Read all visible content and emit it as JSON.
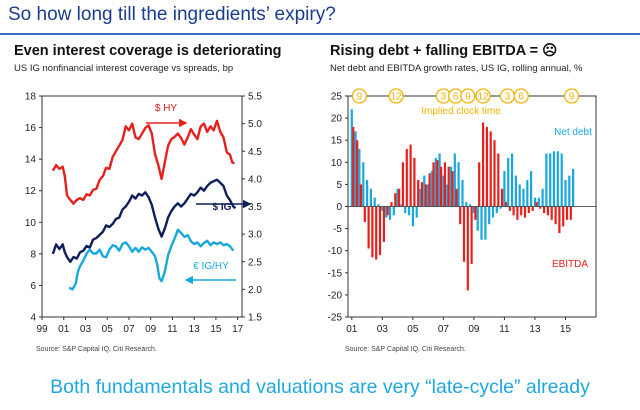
{
  "slide": {
    "title": "So how long till the ingredients’ expiry?",
    "footer": "Both fundamentals and valuations are very “late-cycle” already"
  },
  "left": {
    "title": "Even interest coverage is deteriorating",
    "subtitle": "US IG nonfinancial interest coverage vs spreads, bp",
    "source": "Source: S&P Capital IQ, Citi Research."
  },
  "right": {
    "title": "Rising debt + falling EBITDA = ☹",
    "subtitle": "Net debt and EBITDA growth rates, US IG, rolling annual, %",
    "source": "Source: S&P Capital IQ, Citi Research."
  },
  "chart_data": [
    {
      "type": "line",
      "title": "Even interest coverage is deteriorating",
      "subtitle": "US IG nonfinancial interest coverage vs spreads, bp",
      "x_ticks": [
        "99",
        "01",
        "03",
        "05",
        "07",
        "09",
        "11",
        "13",
        "15",
        "17"
      ],
      "xlim": [
        1999,
        2017.4
      ],
      "left_axis": {
        "ticks": [
          "18",
          "16",
          "14",
          "12",
          "10",
          "8",
          "6",
          "4"
        ],
        "ylim": [
          4,
          18
        ]
      },
      "right_axis": {
        "ticks": [
          "5.5",
          "5.0",
          "4.5",
          "4.0",
          "3.5",
          "3.0",
          "2.5",
          "2.0",
          "1.5"
        ],
        "ylim": [
          1.5,
          5.5
        ]
      },
      "grid": false,
      "colors": {
        "hy": "#e8201c",
        "ig": "#0f1f5c",
        "igHy": "#19a8de"
      },
      "series": [
        {
          "name": "$ HY",
          "axis": "right",
          "points": [
            [
              2000.0,
              4.15
            ],
            [
              2000.3,
              4.25
            ],
            [
              2000.6,
              4.18
            ],
            [
              2000.9,
              4.22
            ],
            [
              2001.1,
              4.05
            ],
            [
              2001.3,
              3.7
            ],
            [
              2001.6,
              3.62
            ],
            [
              2001.9,
              3.55
            ],
            [
              2002.2,
              3.62
            ],
            [
              2002.5,
              3.65
            ],
            [
              2002.8,
              3.62
            ],
            [
              2003.1,
              3.72
            ],
            [
              2003.4,
              3.7
            ],
            [
              2003.7,
              3.8
            ],
            [
              2004.0,
              3.82
            ],
            [
              2004.3,
              3.98
            ],
            [
              2004.6,
              4.05
            ],
            [
              2004.9,
              4.2
            ],
            [
              2005.2,
              4.18
            ],
            [
              2005.5,
              4.4
            ],
            [
              2005.8,
              4.5
            ],
            [
              2006.1,
              4.6
            ],
            [
              2006.4,
              4.7
            ],
            [
              2006.7,
              4.95
            ],
            [
              2007.0,
              4.88
            ],
            [
              2007.3,
              5.0
            ],
            [
              2007.6,
              4.75
            ],
            [
              2007.9,
              4.72
            ],
            [
              2008.2,
              4.82
            ],
            [
              2008.5,
              4.92
            ],
            [
              2008.8,
              4.97
            ],
            [
              2009.1,
              4.82
            ],
            [
              2009.4,
              4.45
            ],
            [
              2009.7,
              4.25
            ],
            [
              2010.0,
              4.0
            ],
            [
              2010.3,
              4.3
            ],
            [
              2010.6,
              4.6
            ],
            [
              2010.9,
              4.72
            ],
            [
              2011.2,
              4.76
            ],
            [
              2011.5,
              4.82
            ],
            [
              2011.8,
              4.74
            ],
            [
              2012.1,
              4.62
            ],
            [
              2012.4,
              4.75
            ],
            [
              2012.7,
              4.9
            ],
            [
              2013.0,
              4.8
            ],
            [
              2013.3,
              4.72
            ],
            [
              2013.6,
              4.95
            ],
            [
              2013.9,
              5.0
            ],
            [
              2014.2,
              4.85
            ],
            [
              2014.5,
              4.95
            ],
            [
              2014.8,
              4.88
            ],
            [
              2015.1,
              5.05
            ],
            [
              2015.4,
              4.85
            ],
            [
              2015.7,
              4.75
            ],
            [
              2016.0,
              4.48
            ],
            [
              2016.3,
              4.44
            ],
            [
              2016.5,
              4.3
            ],
            [
              2016.7,
              4.28
            ]
          ]
        },
        {
          "name": "$ IG",
          "axis": "left",
          "points": [
            [
              2000.0,
              8.0
            ],
            [
              2000.3,
              8.6
            ],
            [
              2000.6,
              8.3
            ],
            [
              2000.9,
              8.6
            ],
            [
              2001.1,
              8.1
            ],
            [
              2001.3,
              7.8
            ],
            [
              2001.6,
              7.5
            ],
            [
              2001.9,
              7.8
            ],
            [
              2002.2,
              7.7
            ],
            [
              2002.5,
              8.1
            ],
            [
              2002.8,
              8.2
            ],
            [
              2003.1,
              8.5
            ],
            [
              2003.4,
              8.4
            ],
            [
              2003.7,
              8.9
            ],
            [
              2004.0,
              9.0
            ],
            [
              2004.3,
              9.2
            ],
            [
              2004.6,
              9.4
            ],
            [
              2004.9,
              9.8
            ],
            [
              2005.2,
              9.7
            ],
            [
              2005.5,
              9.9
            ],
            [
              2005.8,
              10.2
            ],
            [
              2006.1,
              10.3
            ],
            [
              2006.4,
              10.8
            ],
            [
              2006.7,
              11.0
            ],
            [
              2007.0,
              11.3
            ],
            [
              2007.3,
              11.7
            ],
            [
              2007.6,
              11.5
            ],
            [
              2007.9,
              11.8
            ],
            [
              2008.2,
              11.7
            ],
            [
              2008.5,
              11.9
            ],
            [
              2008.8,
              11.6
            ],
            [
              2009.1,
              11.1
            ],
            [
              2009.4,
              10.3
            ],
            [
              2009.7,
              9.6
            ],
            [
              2010.0,
              9.1
            ],
            [
              2010.3,
              9.6
            ],
            [
              2010.6,
              10.3
            ],
            [
              2010.9,
              10.7
            ],
            [
              2011.2,
              11.0
            ],
            [
              2011.5,
              11.2
            ],
            [
              2011.8,
              11.0
            ],
            [
              2012.1,
              11.2
            ],
            [
              2012.4,
              11.5
            ],
            [
              2012.7,
              11.8
            ],
            [
              2013.0,
              11.7
            ],
            [
              2013.3,
              11.9
            ],
            [
              2013.6,
              12.2
            ],
            [
              2013.9,
              12.0
            ],
            [
              2014.2,
              12.3
            ],
            [
              2014.5,
              12.5
            ],
            [
              2014.8,
              12.6
            ],
            [
              2015.1,
              12.7
            ],
            [
              2015.4,
              12.5
            ],
            [
              2015.7,
              12.3
            ],
            [
              2016.0,
              11.7
            ],
            [
              2016.3,
              11.4
            ],
            [
              2016.6,
              11.0
            ],
            [
              2016.8,
              10.9
            ]
          ]
        },
        {
          "name": "€ IG/HY",
          "axis": "right",
          "points": [
            [
              2001.5,
              2.03
            ],
            [
              2001.8,
              2.0
            ],
            [
              2002.1,
              2.1
            ],
            [
              2002.3,
              2.32
            ],
            [
              2002.5,
              2.42
            ],
            [
              2002.8,
              2.52
            ],
            [
              2003.1,
              2.65
            ],
            [
              2003.4,
              2.72
            ],
            [
              2003.7,
              2.65
            ],
            [
              2004.0,
              2.65
            ],
            [
              2004.3,
              2.72
            ],
            [
              2004.6,
              2.6
            ],
            [
              2004.9,
              2.58
            ],
            [
              2005.2,
              2.72
            ],
            [
              2005.5,
              2.8
            ],
            [
              2005.8,
              2.78
            ],
            [
              2006.1,
              2.7
            ],
            [
              2006.4,
              2.82
            ],
            [
              2006.7,
              2.85
            ],
            [
              2007.0,
              2.78
            ],
            [
              2007.3,
              2.68
            ],
            [
              2007.6,
              2.75
            ],
            [
              2007.9,
              2.68
            ],
            [
              2008.2,
              2.76
            ],
            [
              2008.5,
              2.72
            ],
            [
              2008.8,
              2.75
            ],
            [
              2009.1,
              2.68
            ],
            [
              2009.4,
              2.6
            ],
            [
              2009.6,
              2.45
            ],
            [
              2009.8,
              2.2
            ],
            [
              2010.0,
              2.15
            ],
            [
              2010.3,
              2.32
            ],
            [
              2010.6,
              2.62
            ],
            [
              2010.9,
              2.78
            ],
            [
              2011.2,
              2.92
            ],
            [
              2011.5,
              3.08
            ],
            [
              2011.8,
              3.02
            ],
            [
              2012.1,
              2.95
            ],
            [
              2012.4,
              2.98
            ],
            [
              2012.7,
              2.87
            ],
            [
              2013.0,
              2.82
            ],
            [
              2013.3,
              2.85
            ],
            [
              2013.6,
              2.78
            ],
            [
              2013.9,
              2.84
            ],
            [
              2014.2,
              2.88
            ],
            [
              2014.5,
              2.8
            ],
            [
              2014.8,
              2.85
            ],
            [
              2015.1,
              2.82
            ],
            [
              2015.4,
              2.85
            ],
            [
              2015.7,
              2.8
            ],
            [
              2016.0,
              2.82
            ],
            [
              2016.3,
              2.78
            ],
            [
              2016.6,
              2.7
            ]
          ]
        }
      ]
    },
    {
      "type": "bar",
      "title": "Rising debt + falling EBITDA = ☹",
      "subtitle": "Net debt and EBITDA growth rates, US IG, rolling annual, %",
      "x_ticks": [
        "01",
        "03",
        "05",
        "07",
        "09",
        "11",
        "13",
        "15"
      ],
      "xlim": [
        2000.75,
        2017
      ],
      "y_ticks": [
        "25",
        "20",
        "15",
        "10",
        "5",
        "0",
        "-5",
        "-10",
        "-15",
        "-20",
        "-25"
      ],
      "ylim": [
        -25,
        25
      ],
      "grid": false,
      "colors": {
        "netDebt": "#19a8de",
        "ebitda": "#e8201c",
        "clock": "#f3b300"
      },
      "series": [
        {
          "name": "Net debt",
          "start": 2001.0,
          "step": 0.25,
          "values": [
            22,
            17,
            13,
            10,
            6,
            4,
            2,
            0.5,
            -1,
            -2.5,
            -3,
            -2,
            4,
            0.5,
            -1.5,
            -2,
            -4.5,
            -2.5,
            4,
            7,
            5,
            8,
            11,
            12,
            7,
            5,
            9,
            12,
            10,
            6,
            1,
            0.5,
            -1.5,
            -5.5,
            -7.5,
            -7.5,
            -4,
            -2.5,
            -1.5,
            -0.5,
            8,
            11,
            12,
            7,
            5,
            4,
            6,
            8,
            2,
            2,
            4,
            12,
            12,
            12.5,
            12.5,
            12,
            6,
            7,
            8.5
          ]
        },
        {
          "name": "EBITDA",
          "start": 2001.1,
          "step": 0.25,
          "values": [
            18,
            15,
            5,
            -3.5,
            -9.5,
            -11.5,
            -12,
            -11,
            -8,
            -2,
            1,
            3,
            4,
            10,
            13,
            14,
            11,
            6,
            5.5,
            5,
            7.5,
            10,
            10.5,
            9,
            10,
            9,
            8,
            4,
            -4,
            -12.5,
            -19,
            -13,
            -3,
            10,
            19,
            18,
            17,
            15,
            12,
            4,
            1,
            -1,
            -2,
            -3,
            -2,
            -2.5,
            -1.5,
            -1,
            1,
            -0.5,
            -1.5,
            -2,
            -3,
            -4,
            -6,
            -4.5,
            -3,
            -3
          ]
        }
      ],
      "annotations": {
        "clock_label": "Implied clock time",
        "clock_hours": [
          {
            "label": "9",
            "x": 2001.5
          },
          {
            "label": "12",
            "x": 2003.9
          },
          {
            "label": "3",
            "x": 2007.0
          },
          {
            "label": "6",
            "x": 2007.8
          },
          {
            "label": "9",
            "x": 2008.6
          },
          {
            "label": "12",
            "x": 2009.6
          },
          {
            "label": "3",
            "x": 2011.2
          },
          {
            "label": "6",
            "x": 2012.1
          },
          {
            "label": "9",
            "x": 2015.4
          }
        ]
      }
    }
  ]
}
